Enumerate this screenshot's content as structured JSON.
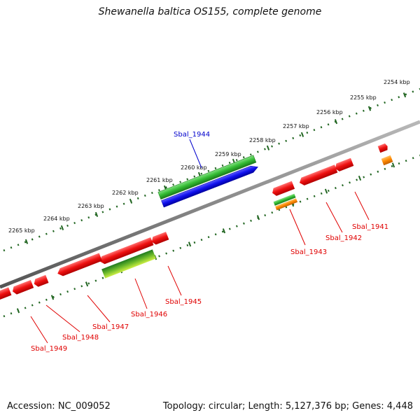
{
  "title": "Shewanella baltica OS155, complete genome",
  "accession": "Accession: NC_009052",
  "summary": "Topology: circular; Length: 5,127,376 bp; Genes: 4,448",
  "scale_labels": [
    "2254 kbp",
    "2255 kbp",
    "2256 kbp",
    "2257 kbp",
    "2258 kbp",
    "2259 kbp",
    "2260 kbp",
    "2261 kbp",
    "2262 kbp",
    "2263 kbp",
    "2264 kbp",
    "2265 kbp"
  ],
  "genes": [
    {
      "label": "Sbal_1941",
      "color": "#e00000"
    },
    {
      "label": "Sbal_1942",
      "color": "#e00000"
    },
    {
      "label": "Sbal_1943",
      "color": "#e00000"
    },
    {
      "label": "Sbal_1944",
      "color": "#0000cc"
    },
    {
      "label": "Sbal_1945",
      "color": "#e00000"
    },
    {
      "label": "Sbal_1946",
      "color": "#e00000"
    },
    {
      "label": "Sbal_1947",
      "color": "#e00000"
    },
    {
      "label": "Sbal_1948",
      "color": "#e00000"
    },
    {
      "label": "Sbal_1949",
      "color": "#e00000"
    }
  ],
  "colors": {
    "forward_gene": "#1010ee",
    "reverse_gene": "#ee1111",
    "feature_green": "#33bb33",
    "feature_orange": "#ff8800",
    "feature_lime": "#aadd33",
    "ticks": "#226622",
    "backbone": "#808080"
  }
}
